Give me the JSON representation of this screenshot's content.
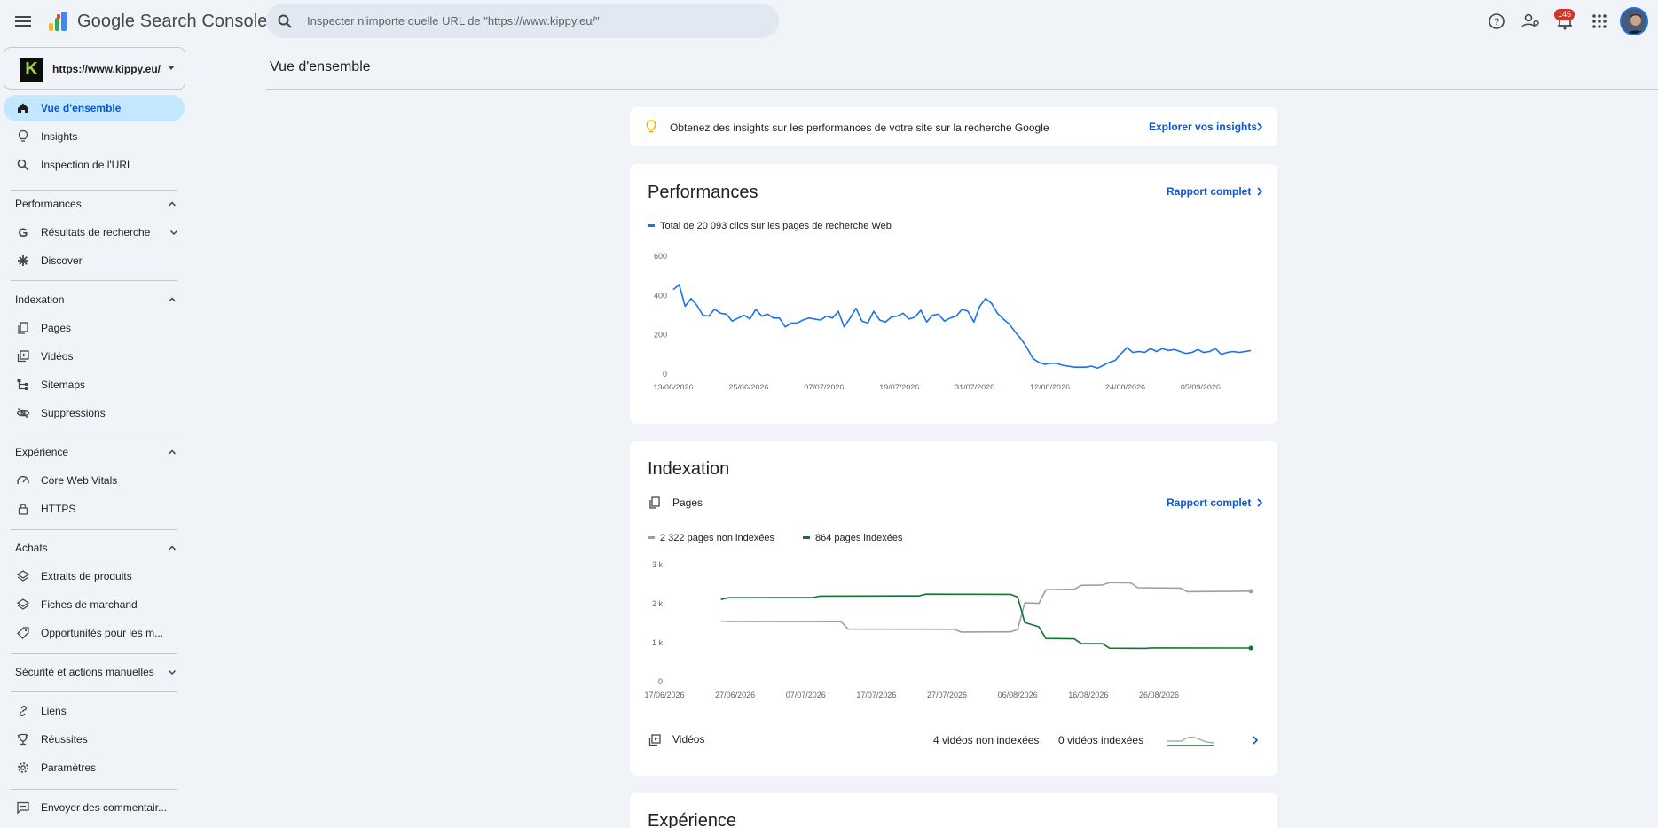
{
  "header": {
    "app_title": "Google Search Console",
    "search_placeholder": "Inspecter n'importe quelle URL de \"https://www.kippy.eu/\"",
    "notifications_count": "145"
  },
  "sidebar": {
    "property": {
      "logo_letter": "K",
      "label": "https://www.kippy.eu/"
    },
    "items": {
      "overview": "Vue d'ensemble",
      "insights": "Insights",
      "url_inspection": "Inspection de l'URL",
      "search_results": "Résultats de recherche",
      "discover": "Discover",
      "pages": "Pages",
      "videos": "Vidéos",
      "sitemaps": "Sitemaps",
      "removals": "Suppressions",
      "core_web_vitals": "Core Web Vitals",
      "https": "HTTPS",
      "product_snippets": "Extraits de produits",
      "merchant_listings": "Fiches de marchand",
      "shopping_opportunities": "Opportunités pour les m...",
      "links": "Liens",
      "achievements": "Réussites",
      "settings": "Paramètres",
      "feedback": "Envoyer des commentair..."
    },
    "sections": {
      "performance": "Performances",
      "indexing": "Indexation",
      "experience": "Expérience",
      "shopping": "Achats",
      "security": "Sécurité et actions manuelles"
    }
  },
  "main": {
    "page_title": "Vue d'ensemble",
    "insight_banner": {
      "text": "Obtenez des insights sur les performances de votre site sur la recherche Google",
      "link": "Explorer vos insights"
    },
    "performance": {
      "title": "Performances",
      "full_report": "Rapport complet",
      "legend": "Total de 20 093 clics sur les pages de recherche Web"
    },
    "indexing": {
      "title": "Indexation",
      "pages_label": "Pages",
      "full_report": "Rapport complet",
      "legend_not_indexed": "2 322 pages non indexées",
      "legend_indexed": "864 pages indexées",
      "videos_label": "Vidéos",
      "videos_not_indexed": "4 vidéos non indexées",
      "videos_indexed": "0 vidéos indexées"
    },
    "experience": {
      "title": "Expérience"
    }
  },
  "colors": {
    "accent": "#0b57d0",
    "perf_line": "#1a73e8",
    "indexed": "#137333",
    "not_indexed": "#9aa0a6",
    "active_nav": "#c2e7ff"
  },
  "chart_data": [
    {
      "type": "line",
      "title": "",
      "ylim": [
        0,
        600
      ],
      "yticks": [
        "0",
        "200",
        "400",
        "600"
      ],
      "x_tick_labels": [
        "13/06/2026",
        "25/06/2026",
        "07/07/2026",
        "19/07/2026",
        "31/07/2026",
        "12/08/2026",
        "24/08/2026",
        "05/09/2026"
      ],
      "x_start": "13/06/2026",
      "x_end": "13/09/2026",
      "series": [
        {
          "name": "Total de 20 093 clics sur les pages de recherche Web",
          "values": [
            430,
            455,
            345,
            385,
            350,
            300,
            295,
            330,
            310,
            305,
            270,
            285,
            300,
            280,
            330,
            295,
            305,
            285,
            285,
            240,
            260,
            260,
            275,
            285,
            280,
            275,
            295,
            285,
            320,
            240,
            285,
            335,
            270,
            260,
            320,
            275,
            265,
            290,
            295,
            310,
            280,
            290,
            325,
            265,
            300,
            305,
            270,
            285,
            295,
            330,
            320,
            265,
            345,
            385,
            360,
            310,
            280,
            255,
            215,
            180,
            135,
            80,
            60,
            50,
            55,
            55,
            45,
            40,
            35,
            35,
            35,
            40,
            30,
            45,
            60,
            70,
            105,
            135,
            110,
            115,
            110,
            130,
            115,
            130,
            120,
            125,
            115,
            105,
            110,
            125,
            110,
            115,
            130,
            100,
            110,
            115,
            110,
            115,
            120
          ]
        }
      ]
    },
    {
      "type": "line",
      "title": "",
      "ylim": [
        0,
        3000
      ],
      "yticks": [
        "0",
        "1 k",
        "2 k",
        "3 k"
      ],
      "x_tick_labels": [
        "17/06/2026",
        "27/06/2026",
        "07/07/2026",
        "17/07/2026",
        "27/07/2026",
        "06/08/2026",
        "16/08/2026",
        "26/08/2026"
      ],
      "x_start": "17/06/2026",
      "x_end": "08/09/2026",
      "series": [
        {
          "name": "2 322 pages non indexées",
          "points": [
            [
              "25/06/2026",
              1560
            ],
            [
              "26/06/2026",
              1545
            ],
            [
              "12/07/2026",
              1540
            ],
            [
              "13/07/2026",
              1350
            ],
            [
              "28/07/2026",
              1345
            ],
            [
              "29/07/2026",
              1275
            ],
            [
              "05/08/2026",
              1280
            ],
            [
              "06/08/2026",
              1340
            ],
            [
              "07/08/2026",
              2020
            ],
            [
              "09/08/2026",
              2010
            ],
            [
              "10/08/2026",
              2360
            ],
            [
              "14/08/2026",
              2370
            ],
            [
              "15/08/2026",
              2470
            ],
            [
              "18/08/2026",
              2480
            ],
            [
              "19/08/2026",
              2540
            ],
            [
              "22/08/2026",
              2535
            ],
            [
              "23/08/2026",
              2410
            ],
            [
              "29/08/2026",
              2400
            ],
            [
              "30/08/2026",
              2310
            ],
            [
              "08/09/2026",
              2322
            ]
          ]
        },
        {
          "name": "864 pages indexées",
          "points": [
            [
              "25/06/2026",
              2110
            ],
            [
              "26/06/2026",
              2155
            ],
            [
              "08/07/2026",
              2160
            ],
            [
              "09/07/2026",
              2195
            ],
            [
              "23/07/2026",
              2200
            ],
            [
              "24/07/2026",
              2245
            ],
            [
              "05/08/2026",
              2240
            ],
            [
              "06/08/2026",
              2170
            ],
            [
              "07/08/2026",
              1520
            ],
            [
              "09/08/2026",
              1410
            ],
            [
              "10/08/2026",
              1110
            ],
            [
              "14/08/2026",
              1100
            ],
            [
              "15/08/2026",
              980
            ],
            [
              "18/08/2026",
              975
            ],
            [
              "19/08/2026",
              860
            ],
            [
              "24/08/2026",
              855
            ],
            [
              "25/08/2026",
              865
            ],
            [
              "08/09/2026",
              864
            ]
          ]
        }
      ]
    }
  ]
}
